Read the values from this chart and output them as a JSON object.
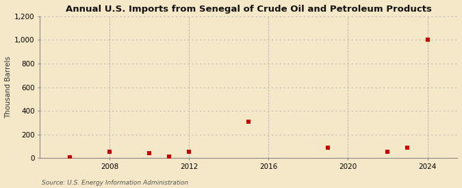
{
  "title": "Annual U.S. Imports from Senegal of Crude Oil and Petroleum Products",
  "ylabel": "Thousand Barrels",
  "source": "Source: U.S. Energy Information Administration",
  "background_color": "#f5e8c8",
  "plot_background_color": "#f5e8c8",
  "marker_color": "#cc0000",
  "marker": "s",
  "markersize": 4,
  "years": [
    2006,
    2008,
    2010,
    2011,
    2012,
    2015,
    2019,
    2022,
    2023,
    2024
  ],
  "values": [
    5,
    55,
    40,
    15,
    55,
    310,
    85,
    55,
    85,
    1000
  ],
  "xlim": [
    2004.5,
    2025.5
  ],
  "ylim": [
    0,
    1200
  ],
  "yticks": [
    0,
    200,
    400,
    600,
    800,
    1000,
    1200
  ],
  "xticks": [
    2008,
    2012,
    2016,
    2020,
    2024
  ],
  "title_fontsize": 9.5,
  "label_fontsize": 7.5,
  "tick_fontsize": 7.5,
  "source_fontsize": 6.5,
  "grid_color": "#b0b0b0",
  "grid_linewidth": 0.6,
  "spine_color": "#888888"
}
